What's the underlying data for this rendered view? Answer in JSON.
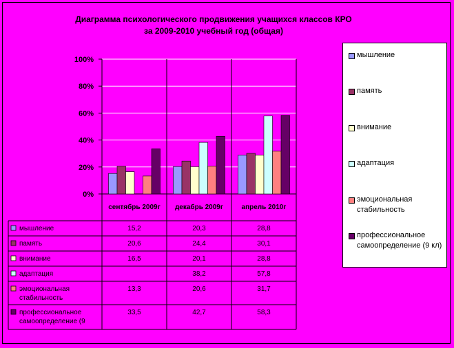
{
  "chart_data": {
    "type": "bar",
    "title": "Диаграмма психологического продвижения учащихся классов КРО",
    "subtitle": "за 2009-2010 учебный год (общая)",
    "categories": [
      "сентябрь 2009г",
      "декабрь 2009г",
      "апрель 2010г"
    ],
    "y_ticks": [
      "0%",
      "20%",
      "40%",
      "60%",
      "80%",
      "100%"
    ],
    "ylim": [
      0,
      100
    ],
    "grid": true,
    "legend_position": "right",
    "series": [
      {
        "name": "мышление",
        "values": [
          15.2,
          20.3,
          28.8
        ],
        "value_labels": [
          "15,2",
          "20,3",
          "28,8"
        ],
        "color": "#9999ff",
        "table_label": "мышление"
      },
      {
        "name": "память",
        "values": [
          20.6,
          24.4,
          30.1
        ],
        "value_labels": [
          "20,6",
          "24,4",
          "30,1"
        ],
        "color": "#993366",
        "table_label": "память"
      },
      {
        "name": "внимание",
        "values": [
          16.5,
          20.1,
          28.8
        ],
        "value_labels": [
          "16,5",
          "20,1",
          "28,8"
        ],
        "color": "#ffffcc",
        "table_label": "внимание"
      },
      {
        "name": "адаптация",
        "values": [
          null,
          38.2,
          57.8
        ],
        "value_labels": [
          "",
          "38,2",
          "57,8"
        ],
        "color": "#ccffff",
        "table_label": "адаптация"
      },
      {
        "name": "эмоциональная стабильность",
        "values": [
          13.3,
          20.6,
          31.7
        ],
        "value_labels": [
          "13,3",
          "20,6",
          "31,7"
        ],
        "color": "#ff8080",
        "table_label": "эмоциональная стабильность"
      },
      {
        "name": "профессиональное самоопределение (9 кл)",
        "values": [
          33.5,
          42.7,
          58.3
        ],
        "value_labels": [
          "33,5",
          "42,7",
          "58,3"
        ],
        "color": "#660066",
        "table_label": "профессиональное самоопределение (9"
      }
    ]
  }
}
